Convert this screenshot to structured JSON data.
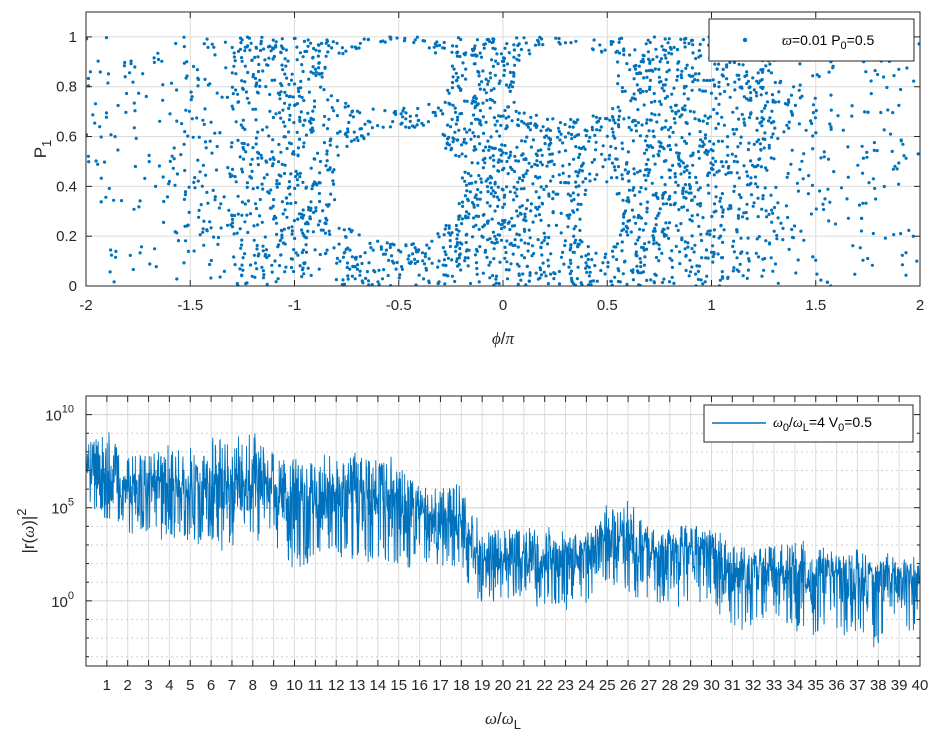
{
  "chart_data": [
    {
      "type": "scatter",
      "xlabel_parts": [
        "ϕ",
        "/",
        "π"
      ],
      "ylabel": "P",
      "ylabel_sub": "1",
      "xlim": [
        -2,
        2
      ],
      "ylim": [
        0,
        1.1
      ],
      "xticks": [
        "-2",
        "-1.5",
        "-1",
        "-0.5",
        "0",
        "0.5",
        "1",
        "1.5",
        "2"
      ],
      "yticks": [
        "0",
        "0.2",
        "0.4",
        "0.6",
        "0.8",
        "1"
      ],
      "grid": true,
      "legend_position": "top-right",
      "series": [
        {
          "legend_parts": [
            "ϖ",
            "=0.01 P",
            "0",
            "=0.5"
          ],
          "color": "#0072BD",
          "islands": [
            {
              "cx": -0.5,
              "cy": 0.4,
              "rx": 0.3,
              "ry": 0.23
            },
            {
              "cx": 0.47,
              "cy": 0.27,
              "rx": 0.1,
              "ry": 0.14
            },
            {
              "cx": 0.3,
              "cy": 0.82,
              "rx": 0.25,
              "ry": 0.15
            },
            {
              "cx": -0.55,
              "cy": 0.84,
              "rx": 0.3,
              "ry": 0.13
            }
          ],
          "point_count": 3000
        }
      ]
    },
    {
      "type": "line",
      "xlabel_parts": [
        "ω",
        "/",
        "ω",
        "L"
      ],
      "ylabel_parts": [
        "|r(",
        "ω",
        ")|",
        "2"
      ],
      "yscale": "log",
      "xlim": [
        0,
        40
      ],
      "ylim_exp": [
        -3.5,
        11
      ],
      "xticks": [
        "1",
        "2",
        "3",
        "4",
        "5",
        "6",
        "7",
        "8",
        "9",
        "10",
        "11",
        "12",
        "13",
        "14",
        "15",
        "16",
        "17",
        "18",
        "19",
        "20",
        "21",
        "22",
        "23",
        "24",
        "25",
        "26",
        "27",
        "28",
        "29",
        "30",
        "31",
        "32",
        "33",
        "34",
        "35",
        "36",
        "37",
        "38",
        "39",
        "40"
      ],
      "yticks": [
        {
          "base": "10",
          "exp": "10",
          "value_exp": 10
        },
        {
          "base": "10",
          "exp": "5",
          "value_exp": 5
        },
        {
          "base": "10",
          "exp": "0",
          "value_exp": 0
        }
      ],
      "grid": true,
      "legend_position": "top-right",
      "series": [
        {
          "legend_parts": [
            "ω",
            "0",
            "/",
            "ω",
            "L",
            "=4 V",
            "0",
            "=0.5"
          ],
          "color": "#0072BD",
          "envelope_log10": {
            "x": [
              0,
              1,
              2,
              3,
              4,
              5,
              6,
              7,
              8,
              9,
              10,
              11,
              12,
              13,
              14,
              15,
              16,
              17,
              18,
              19,
              20,
              21,
              22,
              23,
              24,
              25,
              26,
              27,
              28,
              29,
              30,
              31,
              32,
              33,
              34,
              35,
              36,
              37,
              38,
              39,
              40
            ],
            "hi": [
              8.6,
              9.2,
              7.8,
              7.9,
              8.2,
              8.0,
              8.8,
              8.5,
              8.9,
              8.0,
              7.4,
              7.6,
              7.7,
              7.8,
              7.6,
              7.5,
              6.2,
              6.3,
              6.0,
              3.9,
              3.8,
              4.2,
              3.8,
              3.7,
              3.6,
              5.0,
              5.3,
              4.0,
              3.8,
              4.2,
              3.8,
              3.0,
              2.8,
              3.0,
              3.1,
              2.9,
              2.3,
              2.8,
              2.4,
              2.3,
              2.3
            ],
            "mid": [
              7.0,
              6.6,
              6.0,
              6.3,
              6.1,
              5.9,
              6.4,
              6.1,
              6.5,
              5.8,
              5.3,
              5.8,
              5.8,
              5.8,
              5.5,
              5.6,
              4.7,
              4.3,
              4.0,
              2.2,
              2.2,
              2.3,
              2.3,
              2.4,
              2.4,
              3.4,
              3.4,
              2.6,
              2.6,
              2.8,
              2.6,
              1.6,
              1.6,
              1.6,
              1.5,
              1.3,
              1.3,
              1.3,
              1.3,
              1.2,
              1.2
            ],
            "lo": [
              5.0,
              4.3,
              3.8,
              3.6,
              3.4,
              3.3,
              3.2,
              2.6,
              3.4,
              2.8,
              1.9,
              2.4,
              2.6,
              2.4,
              2.2,
              1.9,
              2.1,
              1.7,
              1.8,
              -0.1,
              0.0,
              0.2,
              -0.3,
              -0.3,
              0.1,
              1.0,
              0.4,
              -0.3,
              -0.2,
              0.0,
              -0.3,
              -1.4,
              -1.3,
              -1.0,
              -1.4,
              -1.9,
              -1.5,
              -1.9,
              -2.4,
              -1.6,
              -1.6
            ]
          }
        }
      ]
    }
  ]
}
